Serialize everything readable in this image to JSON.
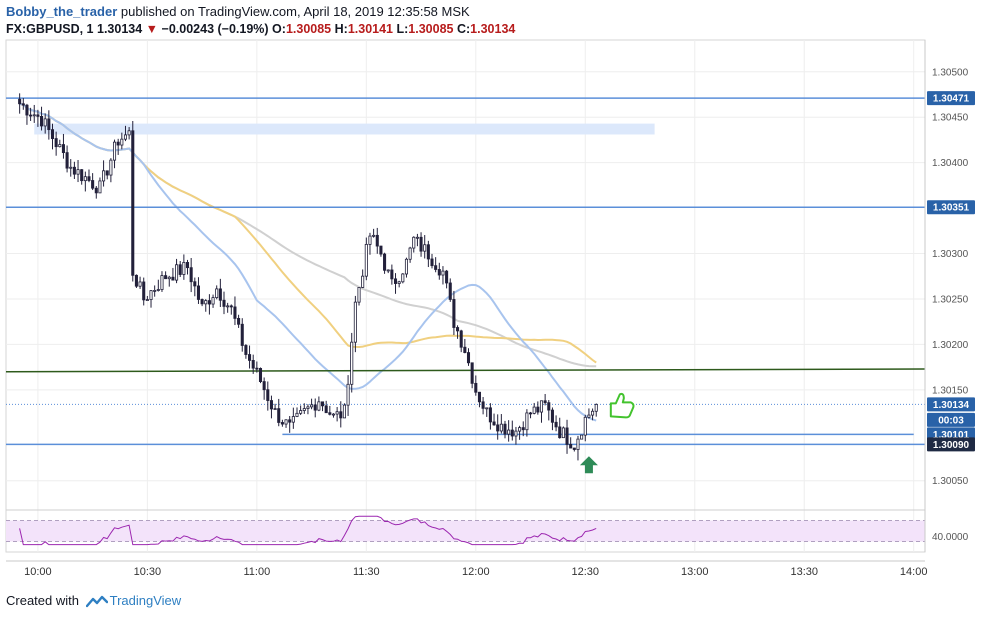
{
  "header": {
    "user": "Bobby_the_trader",
    "published_text": "published on TradingView.com, April 18, 2019 12:35:58 MSK",
    "symbol": "FX:GBPUSD, 1",
    "last": "1.30134",
    "change": "−0.00243 (−0.19%)",
    "open_label": "O:",
    "open": "1.30085",
    "high_label": "H:",
    "high": "1.30141",
    "low_label": "L:",
    "low": "1.30085",
    "close_label": "C:",
    "close": "1.30134"
  },
  "footer": {
    "created_with": "Created with",
    "brand": "TradingView"
  },
  "colors": {
    "level_line": "#5b8fd9",
    "trend_line": "#2e5a1c",
    "zone": "#dce8fb",
    "ma_gray": "#d0d0d0",
    "ma_yellow": "#f0d080",
    "ma_blue": "#a8c4ee",
    "candle": "#22203a",
    "rsi_line": "#9c27b0",
    "rsi_band": "#f3e3fa",
    "tag_blue": "#2962a8",
    "tag_dark": "#1f2a44",
    "arrow_green": "#2e8b57",
    "thumb_green": "#43c32e"
  },
  "chart_data": {
    "type": "candlestick",
    "symbol": "FX:GBPUSD, 1",
    "x_ticks": [
      "10:00",
      "10:30",
      "11:00",
      "11:30",
      "12:00",
      "12:30",
      "13:00",
      "13:30",
      "14:00"
    ],
    "y_ticks": [
      "1.30500",
      "1.30450",
      "1.30400",
      "1.30300",
      "1.30250",
      "1.30200",
      "1.30150",
      "1.30050"
    ],
    "ylim": [
      1.3002,
      1.30535
    ],
    "price_tags": [
      {
        "label": "1.30471",
        "value": 1.30471,
        "style": "blue"
      },
      {
        "label": "1.30351",
        "value": 1.30351,
        "style": "blue"
      },
      {
        "label": "1.30134",
        "value": 1.30134,
        "style": "blue"
      },
      {
        "label": "00:03",
        "value": 1.30117,
        "style": "blue"
      },
      {
        "label": "1.30101",
        "value": 1.30101,
        "style": "blue"
      },
      {
        "label": "1.30090",
        "value": 1.3009,
        "style": "dark"
      }
    ],
    "horizontal_levels": [
      1.30471,
      1.30351,
      1.3009
    ],
    "short_level": {
      "value": 1.30101,
      "from": "11:07",
      "to": "14:00"
    },
    "zone": {
      "from": 1.30443,
      "to": 1.30431,
      "x_from": "09:59",
      "x_to": "12:49"
    },
    "trendline": {
      "start": 1.3017,
      "end": 1.30173
    },
    "current_price_line": 1.30134,
    "rsi": {
      "level": "40.0000",
      "upper": 70,
      "lower": 30
    }
  }
}
